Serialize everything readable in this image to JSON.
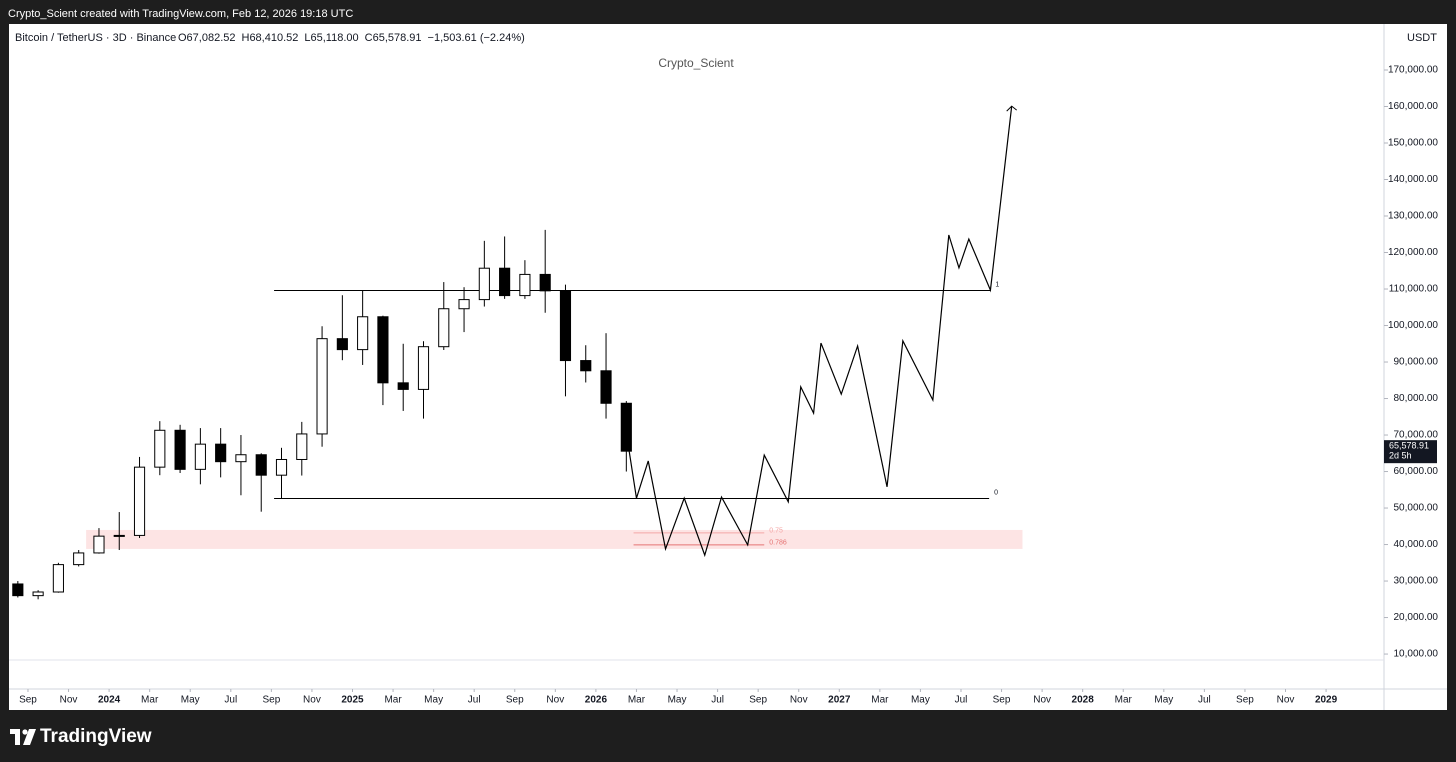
{
  "header": {
    "credit": "Crypto_Scient created with TradingView.com, Feb 12, 2026 19:18 UTC"
  },
  "footer": {
    "brand": "TradingView"
  },
  "chart_data": {
    "type": "candlestick",
    "symbol": "Bitcoin / TetherUS · 3D · Binance",
    "ohlc_texts": [
      "O67,082.52",
      "H68,410.52",
      "L65,118.00",
      "C65,578.91",
      "−1,503.61 (−2.24%)"
    ],
    "watermark": "Crypto_Scient",
    "currency": "USDT",
    "last_price": {
      "value": 65578.91,
      "label": "65,578.91",
      "countdown": "2d 5h"
    },
    "x": [
      "2023-08",
      "2023-09",
      "2023-10",
      "2023-11",
      "2023-12",
      "2024-01",
      "2024-02",
      "2024-03",
      "2024-04",
      "2024-05",
      "2024-06",
      "2024-07",
      "2024-08",
      "2024-09",
      "2024-10",
      "2024-11",
      "2024-12",
      "2025-01",
      "2025-02",
      "2025-03",
      "2025-04",
      "2025-05",
      "2025-06",
      "2025-07",
      "2025-08",
      "2025-09",
      "2025-10",
      "2025-11",
      "2025-12",
      "2026-01",
      "2026-02"
    ],
    "open": [
      29200,
      26000,
      27000,
      34500,
      37700,
      42300,
      42500,
      61200,
      71300,
      60600,
      67500,
      62700,
      64600,
      59000,
      63300,
      70300,
      96400,
      93400,
      102400,
      84300,
      82500,
      94200,
      104600,
      107100,
      115700,
      108200,
      114000,
      109500,
      90400,
      87600,
      78700
    ],
    "high": [
      30000,
      27500,
      35000,
      38500,
      44500,
      48900,
      64000,
      73800,
      72800,
      71900,
      71900,
      70000,
      65000,
      66500,
      73600,
      99800,
      108300,
      109600,
      102700,
      95000,
      95700,
      111900,
      110500,
      123200,
      124400,
      117900,
      126200,
      111200,
      94600,
      97900,
      79300
    ],
    "low": [
      25500,
      25000,
      26800,
      34000,
      37500,
      38500,
      41800,
      59000,
      59600,
      56500,
      58400,
      53500,
      49000,
      52500,
      58900,
      66800,
      90500,
      89200,
      78200,
      76600,
      74500,
      93300,
      98200,
      105200,
      107300,
      107300,
      103500,
      80600,
      84400,
      74500,
      60000
    ],
    "close": [
      26000,
      27000,
      34500,
      37700,
      42300,
      42500,
      61200,
      71300,
      60600,
      67500,
      62700,
      64600,
      59000,
      63300,
      70300,
      96400,
      93400,
      102400,
      84300,
      82500,
      94200,
      104600,
      107100,
      115700,
      108200,
      114000,
      109500,
      90400,
      87600,
      78700,
      65578.91
    ],
    "up_color": "#ffffff",
    "down_color": "#000000",
    "wick_color": "#000000",
    "projection": {
      "color": "#000000",
      "x": [
        "2026-02-19",
        "2026-03-01",
        "2026-03-19",
        "2026-04-14",
        "2026-05-12",
        "2026-06-12",
        "2026-07-07",
        "2026-08-16",
        "2026-09-10",
        "2026-10-16",
        "2026-11-04",
        "2026-11-23",
        "2026-12-04",
        "2027-01-04",
        "2027-01-29",
        "2027-03-12",
        "2027-04-05",
        "2027-05-20",
        "2027-06-13",
        "2027-06-28",
        "2027-07-13",
        "2027-08-15",
        "2027-09-16"
      ],
      "values": [
        65500,
        52700,
        62900,
        38800,
        52700,
        37100,
        53000,
        39900,
        64500,
        51700,
        83200,
        76000,
        95200,
        81200,
        94400,
        55800,
        95800,
        79600,
        124800,
        115800,
        123700,
        109700,
        160100
      ]
    },
    "levels": [
      {
        "label": "1",
        "value": 109600,
        "start": "2024-09-05",
        "end": "2027-08-15",
        "color": "#000000"
      },
      {
        "label": "0",
        "value": 52600,
        "start": "2024-09-05",
        "end": "2027-08-13",
        "color": "#000000"
      }
    ],
    "fib_lines": [
      {
        "label": "0.75",
        "value": 43200,
        "start": "2026-02-25",
        "end": "2026-09-10",
        "color": "#f4a7a7"
      },
      {
        "label": "0.786",
        "value": 39900,
        "start": "2026-02-25",
        "end": "2026-09-10",
        "color": "#e57373"
      }
    ],
    "zone": {
      "low": 38800,
      "high": 44000,
      "start": "2023-11-27",
      "end": "2027-10-02",
      "color": "#fde4e4"
    },
    "ylim": [
      700,
      182600
    ],
    "yticks": [
      {
        "value": 10000,
        "label": "10,000.00"
      },
      {
        "value": 20000,
        "label": "20,000.00"
      },
      {
        "value": 30000,
        "label": "30,000.00"
      },
      {
        "value": 40000,
        "label": "40,000.00"
      },
      {
        "value": 50000,
        "label": "50,000.00"
      },
      {
        "value": 60000,
        "label": "60,000.00"
      },
      {
        "value": 70000,
        "label": "70,000.00"
      },
      {
        "value": 80000,
        "label": "80,000.00"
      },
      {
        "value": 90000,
        "label": "90,000.00"
      },
      {
        "value": 100000,
        "label": "100,000.00"
      },
      {
        "value": 110000,
        "label": "110,000.00"
      },
      {
        "value": 120000,
        "label": "120,000.00"
      },
      {
        "value": 130000,
        "label": "130,000.00"
      },
      {
        "value": 140000,
        "label": "140,000.00"
      },
      {
        "value": 150000,
        "label": "150,000.00"
      },
      {
        "value": 160000,
        "label": "160,000.00"
      },
      {
        "value": 170000,
        "label": "170,000.00"
      }
    ],
    "xlim": [
      "2023-08-03",
      "2029-03-26"
    ],
    "xticks": [
      {
        "value": "2023-09-01",
        "label": "Sep"
      },
      {
        "value": "2023-11-01",
        "label": "Nov"
      },
      {
        "value": "2024-01-01",
        "label": "2024"
      },
      {
        "value": "2024-03-01",
        "label": "Mar"
      },
      {
        "value": "2024-05-01",
        "label": "May"
      },
      {
        "value": "2024-07-01",
        "label": "Jul"
      },
      {
        "value": "2024-09-01",
        "label": "Sep"
      },
      {
        "value": "2024-11-01",
        "label": "Nov"
      },
      {
        "value": "2025-01-01",
        "label": "2025"
      },
      {
        "value": "2025-03-01",
        "label": "Mar"
      },
      {
        "value": "2025-05-01",
        "label": "May"
      },
      {
        "value": "2025-07-01",
        "label": "Jul"
      },
      {
        "value": "2025-09-01",
        "label": "Sep"
      },
      {
        "value": "2025-11-01",
        "label": "Nov"
      },
      {
        "value": "2026-01-01",
        "label": "2026"
      },
      {
        "value": "2026-03-01",
        "label": "Mar"
      },
      {
        "value": "2026-05-01",
        "label": "May"
      },
      {
        "value": "2026-07-01",
        "label": "Jul"
      },
      {
        "value": "2026-09-01",
        "label": "Sep"
      },
      {
        "value": "2026-11-01",
        "label": "Nov"
      },
      {
        "value": "2027-01-01",
        "label": "2027"
      },
      {
        "value": "2027-03-01",
        "label": "Mar"
      },
      {
        "value": "2027-05-01",
        "label": "May"
      },
      {
        "value": "2027-07-01",
        "label": "Jul"
      },
      {
        "value": "2027-09-01",
        "label": "Sep"
      },
      {
        "value": "2027-11-01",
        "label": "Nov"
      },
      {
        "value": "2028-01-01",
        "label": "2028"
      },
      {
        "value": "2028-03-01",
        "label": "Mar"
      },
      {
        "value": "2028-05-01",
        "label": "May"
      },
      {
        "value": "2028-07-01",
        "label": "Jul"
      },
      {
        "value": "2028-09-01",
        "label": "Sep"
      },
      {
        "value": "2028-11-01",
        "label": "Nov"
      },
      {
        "value": "2029-01-01",
        "label": "2029"
      }
    ],
    "grid": false
  }
}
